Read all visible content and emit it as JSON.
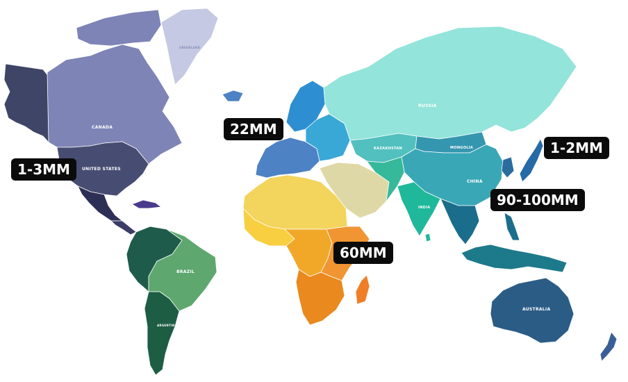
{
  "map": {
    "country_labels": {
      "canada": "CANADA",
      "united_states": "UNITED STATES",
      "russia": "RUSSIA",
      "kazakhstan": "KAZAKHSTAN",
      "mongolia": "MONGOLIA",
      "china": "CHINA",
      "india": "INDIA",
      "brazil": "BRAZIL",
      "argentina": "ARGENTINA",
      "australia": "AUSTRALIA",
      "greenland": "GREENLAND"
    },
    "callouts": {
      "north_america": "1-3MM",
      "europe": "22MM",
      "japan": "1-2MM",
      "southeast_asia": "90-100MM",
      "africa": "60MM"
    },
    "colors": {
      "alaska": "#3e4566",
      "canada": "#7e84b5",
      "united_states": "#474d72",
      "greenland": "#c5c9e3",
      "mexico": "#2e2f55",
      "central_america": "#3b3c68",
      "caribbean": "#4a3a8c",
      "south_america_north": "#1f5b4a",
      "brazil": "#5ea76f",
      "argentina": "#1d5d44",
      "europe_north": "#2d8fd1",
      "europe_west": "#4d82c4",
      "europe_east": "#3aa8d6",
      "russia": "#93e4da",
      "kazakhstan": "#52c0bf",
      "middle_east": "#ded8a6",
      "central_asia": "#36b99a",
      "india": "#1fb89b",
      "china": "#3aa7b6",
      "mongolia": "#3596b0",
      "japan": "#256aa6",
      "korea": "#2b6c9e",
      "southeast_asia": "#1b6d8c",
      "indonesia": "#1d7a8a",
      "north_africa": "#f3d45c",
      "west_africa": "#f7cf40",
      "central_africa": "#f1a829",
      "east_africa": "#f09532",
      "southern_africa": "#e9891e",
      "madagascar": "#ef7e27",
      "australia": "#2b5c86",
      "new_zealand": "#3a5f98"
    }
  }
}
